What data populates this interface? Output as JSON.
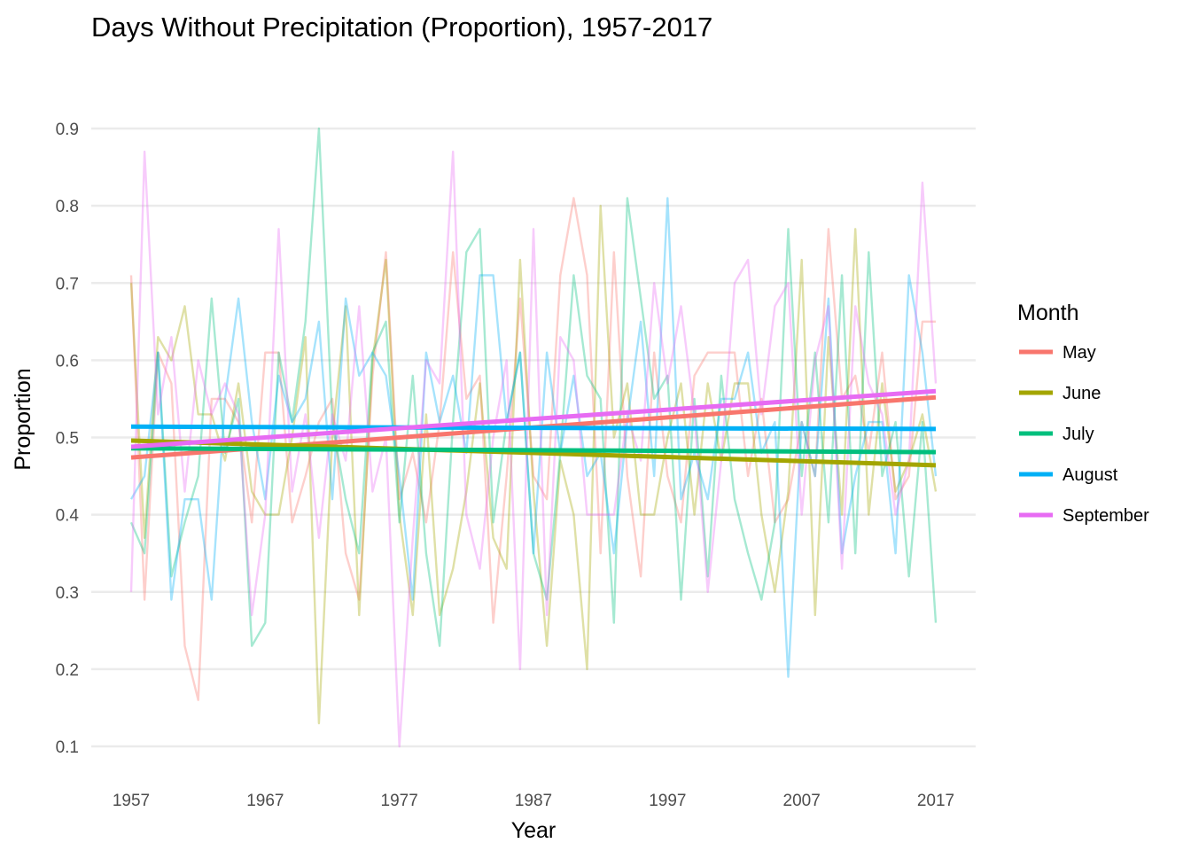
{
  "chart_data": {
    "type": "line",
    "title": "Days Without Precipitation (Proportion), 1957-2017",
    "xlabel": "Year",
    "ylabel": "Proportion",
    "xlim": [
      1957,
      2017
    ],
    "ylim": [
      0.1,
      0.9
    ],
    "x_ticks": [
      1957,
      1967,
      1977,
      1987,
      1997,
      2007,
      2017
    ],
    "y_ticks": [
      0.1,
      0.2,
      0.3,
      0.4,
      0.5,
      0.6,
      0.7,
      0.8,
      0.9
    ],
    "y_tick_labels": [
      "0.1",
      "0.2",
      "0.3",
      "0.4",
      "0.5",
      "0.6",
      "0.7",
      "0.8",
      "0.9"
    ],
    "grid": true,
    "legend": {
      "title": "Month",
      "position": "right"
    },
    "x": [
      1957,
      1958,
      1959,
      1960,
      1961,
      1962,
      1963,
      1964,
      1965,
      1966,
      1967,
      1968,
      1969,
      1970,
      1971,
      1972,
      1973,
      1974,
      1975,
      1976,
      1977,
      1978,
      1979,
      1980,
      1981,
      1982,
      1983,
      1984,
      1985,
      1986,
      1987,
      1988,
      1989,
      1990,
      1991,
      1992,
      1993,
      1994,
      1995,
      1996,
      1997,
      1998,
      1999,
      2000,
      2001,
      2002,
      2003,
      2004,
      2005,
      2006,
      2007,
      2008,
      2009,
      2010,
      2011,
      2012,
      2013,
      2014,
      2015,
      2016,
      2017
    ],
    "series": [
      {
        "name": "May",
        "color": "#F8766D",
        "values": [
          0.71,
          0.29,
          0.61,
          0.57,
          0.23,
          0.16,
          0.55,
          0.55,
          0.52,
          0.39,
          0.61,
          0.61,
          0.39,
          0.45,
          0.52,
          0.55,
          0.35,
          0.29,
          0.58,
          0.74,
          0.42,
          0.48,
          0.39,
          0.52,
          0.74,
          0.55,
          0.58,
          0.26,
          0.45,
          0.68,
          0.45,
          0.42,
          0.71,
          0.81,
          0.71,
          0.35,
          0.74,
          0.45,
          0.32,
          0.61,
          0.45,
          0.39,
          0.58,
          0.61,
          0.61,
          0.61,
          0.45,
          0.55,
          0.39,
          0.42,
          0.52,
          0.45,
          0.77,
          0.55,
          0.58,
          0.48,
          0.61,
          0.42,
          0.45,
          0.65,
          0.65
        ],
        "trend": [
          0.474,
          0.552
        ]
      },
      {
        "name": "June",
        "color": "#A3A500",
        "values": [
          0.7,
          0.37,
          0.63,
          0.6,
          0.67,
          0.53,
          0.53,
          0.47,
          0.57,
          0.43,
          0.4,
          0.4,
          0.5,
          0.63,
          0.13,
          0.5,
          0.67,
          0.27,
          0.6,
          0.73,
          0.4,
          0.27,
          0.53,
          0.27,
          0.33,
          0.43,
          0.57,
          0.37,
          0.33,
          0.73,
          0.43,
          0.23,
          0.47,
          0.4,
          0.2,
          0.8,
          0.5,
          0.57,
          0.4,
          0.4,
          0.5,
          0.57,
          0.4,
          0.57,
          0.47,
          0.57,
          0.57,
          0.4,
          0.3,
          0.43,
          0.73,
          0.27,
          0.63,
          0.4,
          0.77,
          0.4,
          0.57,
          0.43,
          0.47,
          0.53,
          0.43
        ],
        "trend": [
          0.496,
          0.464
        ]
      },
      {
        "name": "July",
        "color": "#00BF7D",
        "values": [
          0.39,
          0.35,
          0.61,
          0.32,
          0.39,
          0.45,
          0.68,
          0.48,
          0.55,
          0.23,
          0.26,
          0.61,
          0.52,
          0.65,
          0.9,
          0.52,
          0.42,
          0.35,
          0.61,
          0.65,
          0.39,
          0.58,
          0.35,
          0.23,
          0.52,
          0.74,
          0.77,
          0.39,
          0.52,
          0.61,
          0.35,
          0.29,
          0.48,
          0.71,
          0.58,
          0.55,
          0.26,
          0.81,
          0.68,
          0.55,
          0.58,
          0.29,
          0.55,
          0.32,
          0.58,
          0.42,
          0.35,
          0.29,
          0.39,
          0.77,
          0.45,
          0.61,
          0.39,
          0.71,
          0.35,
          0.74,
          0.45,
          0.52,
          0.32,
          0.52,
          0.26
        ],
        "trend": [
          0.486,
          0.481
        ]
      },
      {
        "name": "August",
        "color": "#00B0F6",
        "values": [
          0.42,
          0.45,
          0.61,
          0.29,
          0.42,
          0.42,
          0.29,
          0.55,
          0.68,
          0.52,
          0.42,
          0.58,
          0.52,
          0.55,
          0.65,
          0.42,
          0.68,
          0.58,
          0.61,
          0.58,
          0.45,
          0.29,
          0.61,
          0.52,
          0.58,
          0.48,
          0.71,
          0.71,
          0.52,
          0.61,
          0.35,
          0.61,
          0.48,
          0.58,
          0.45,
          0.48,
          0.35,
          0.52,
          0.65,
          0.45,
          0.81,
          0.42,
          0.48,
          0.42,
          0.55,
          0.55,
          0.61,
          0.48,
          0.52,
          0.19,
          0.52,
          0.45,
          0.68,
          0.35,
          0.45,
          0.52,
          0.52,
          0.35,
          0.71,
          0.61,
          0.45
        ],
        "trend": [
          0.514,
          0.511
        ]
      },
      {
        "name": "September",
        "color": "#E76BF3",
        "values": [
          0.3,
          0.87,
          0.53,
          0.63,
          0.43,
          0.6,
          0.53,
          0.57,
          0.53,
          0.27,
          0.4,
          0.77,
          0.43,
          0.53,
          0.37,
          0.53,
          0.47,
          0.67,
          0.43,
          0.5,
          0.1,
          0.37,
          0.6,
          0.57,
          0.87,
          0.4,
          0.33,
          0.5,
          0.6,
          0.2,
          0.77,
          0.27,
          0.63,
          0.6,
          0.4,
          0.4,
          0.4,
          0.53,
          0.47,
          0.7,
          0.57,
          0.67,
          0.53,
          0.3,
          0.47,
          0.7,
          0.73,
          0.53,
          0.67,
          0.7,
          0.4,
          0.6,
          0.67,
          0.33,
          0.67,
          0.57,
          0.53,
          0.4,
          0.47,
          0.83,
          0.57
        ],
        "trend": [
          0.488,
          0.56
        ]
      }
    ]
  }
}
